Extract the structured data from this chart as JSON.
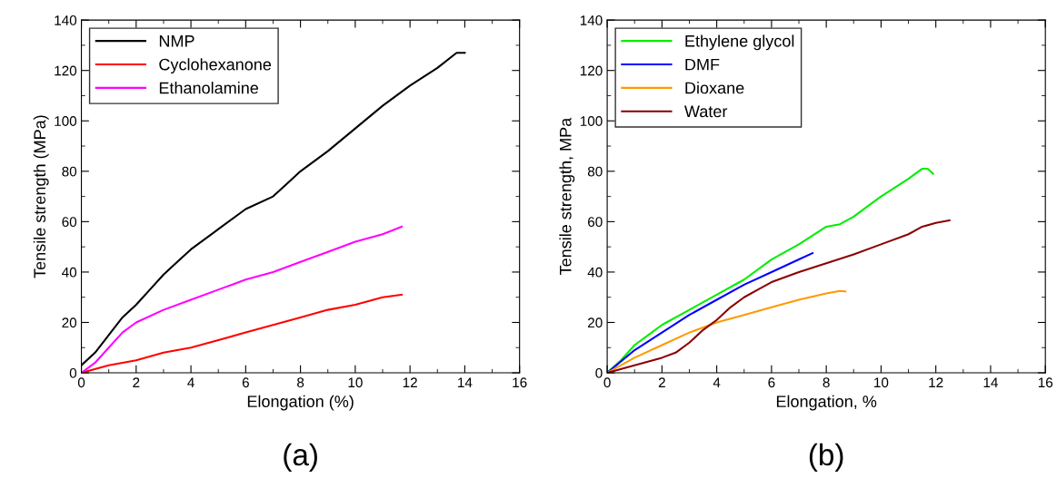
{
  "chart_data": [
    {
      "type": "line",
      "xlabel": "Elongation (%)",
      "ylabel": "Tensile strength (MPa)",
      "annotations": [
        "(a)"
      ],
      "xlim": [
        0,
        16
      ],
      "ylim": [
        0,
        140
      ],
      "xticks": [
        0,
        2,
        4,
        6,
        8,
        10,
        12,
        14,
        16
      ],
      "yticks": [
        0,
        20,
        40,
        60,
        80,
        100,
        120,
        140
      ],
      "legend": "top left",
      "grid": false,
      "series": [
        {
          "name": "NMP",
          "color": "#000000",
          "x": [
            0,
            0.5,
            1,
            1.5,
            2,
            2.5,
            3,
            3.5,
            4,
            5,
            6,
            7,
            7.5,
            8,
            9,
            10,
            11,
            12,
            13,
            13.7,
            14
          ],
          "values": [
            3,
            8,
            15,
            22,
            27,
            33,
            39,
            44,
            49,
            57,
            65,
            70,
            75,
            80,
            88,
            97,
            106,
            114,
            121,
            127,
            127
          ]
        },
        {
          "name": "Cyclohexanone",
          "color": "#ff0000",
          "x": [
            0,
            1,
            2,
            3,
            4,
            5,
            6,
            7,
            8,
            9,
            10,
            11,
            11.7
          ],
          "values": [
            0,
            3,
            5,
            8,
            10,
            13,
            16,
            19,
            22,
            25,
            27,
            30,
            31
          ]
        },
        {
          "name": "Ethanolamine",
          "color": "#ff00ff",
          "x": [
            0,
            0.5,
            1,
            1.5,
            2,
            3,
            4,
            5,
            6,
            7,
            8,
            9,
            10,
            11,
            11.7
          ],
          "values": [
            0,
            4,
            10,
            16,
            20,
            25,
            29,
            33,
            37,
            40,
            44,
            48,
            52,
            55,
            58
          ]
        }
      ]
    },
    {
      "type": "line",
      "xlabel": "Elongation, %",
      "ylabel": "Tensile strength, MPa",
      "annotations": [
        "(b)"
      ],
      "xlim": [
        0,
        16
      ],
      "ylim": [
        0,
        140
      ],
      "xticks": [
        0,
        2,
        4,
        6,
        8,
        10,
        12,
        14,
        16
      ],
      "yticks": [
        0,
        20,
        40,
        60,
        80,
        100,
        120,
        140
      ],
      "legend": "top left",
      "grid": false,
      "series": [
        {
          "name": "Ethylene glycol",
          "color": "#00ee00",
          "x": [
            0,
            0.5,
            1,
            1.5,
            2,
            3,
            4,
            5,
            6,
            7,
            8,
            8.5,
            9,
            9.5,
            10,
            11,
            11.5,
            11.7,
            11.9
          ],
          "values": [
            0,
            5,
            11,
            15,
            19,
            25,
            31,
            37,
            45,
            51,
            58,
            59,
            62,
            66,
            70,
            77,
            81,
            81,
            79
          ]
        },
        {
          "name": "DMF",
          "color": "#0000ff",
          "x": [
            0,
            1,
            2,
            3,
            4,
            5,
            6,
            7,
            7.5
          ],
          "values": [
            0,
            9,
            16,
            23,
            29,
            35,
            40,
            45,
            47.5
          ]
        },
        {
          "name": "Dioxane",
          "color": "#ff9900",
          "x": [
            0,
            1,
            2,
            3,
            4,
            5,
            6,
            7,
            8,
            8.5,
            8.7
          ],
          "values": [
            0,
            6,
            11,
            16,
            20,
            23,
            26,
            29,
            31.5,
            32.5,
            32.3
          ]
        },
        {
          "name": "Water",
          "color": "#8b0000",
          "x": [
            0,
            1,
            2,
            2.5,
            3,
            3.5,
            4,
            4.5,
            5,
            5.5,
            6,
            7,
            8,
            9,
            10,
            11,
            11.5,
            12,
            12.5
          ],
          "values": [
            0,
            3,
            6,
            8,
            12,
            17,
            21,
            26,
            30,
            33,
            36,
            40,
            43.5,
            47,
            51,
            55,
            58,
            59.5,
            60.5
          ]
        }
      ]
    }
  ]
}
